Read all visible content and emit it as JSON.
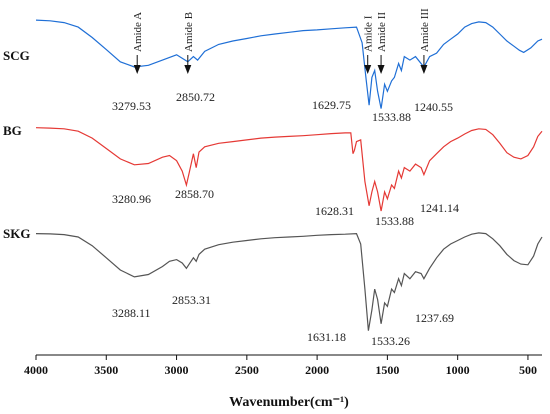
{
  "chart_data": {
    "type": "line",
    "title": "",
    "xlabel": "Wavenumber(cm⁻¹)",
    "ylabel": "",
    "xlim": [
      4000,
      400
    ],
    "x_reversed": true,
    "x_ticks": [
      4000,
      3500,
      3000,
      2500,
      2000,
      1500,
      1000,
      500
    ],
    "grid": false,
    "legend": "none",
    "band_markers": [
      {
        "label": "Amide A",
        "x": 3280
      },
      {
        "label": "Amide B",
        "x": 2920
      },
      {
        "label": "Amide I",
        "x": 1640
      },
      {
        "label": "Amide II",
        "x": 1545
      },
      {
        "label": "Amide III",
        "x": 1240
      }
    ],
    "series": [
      {
        "name": "SCG",
        "color": "#1f6fd6",
        "peak_labels": [
          "3279.53",
          "2850.72",
          "1629.75",
          "1533.88",
          "1240.55"
        ],
        "points": [
          [
            4000,
            0.965
          ],
          [
            3900,
            0.963
          ],
          [
            3800,
            0.958
          ],
          [
            3700,
            0.945
          ],
          [
            3600,
            0.915
          ],
          [
            3500,
            0.88
          ],
          [
            3400,
            0.845
          ],
          [
            3300,
            0.83
          ],
          [
            3200,
            0.835
          ],
          [
            3100,
            0.85
          ],
          [
            3000,
            0.865
          ],
          [
            2960,
            0.855
          ],
          [
            2920,
            0.845
          ],
          [
            2880,
            0.86
          ],
          [
            2850,
            0.85
          ],
          [
            2800,
            0.875
          ],
          [
            2700,
            0.895
          ],
          [
            2600,
            0.905
          ],
          [
            2500,
            0.912
          ],
          [
            2400,
            0.92
          ],
          [
            2300,
            0.925
          ],
          [
            2200,
            0.93
          ],
          [
            2100,
            0.935
          ],
          [
            2000,
            0.937
          ],
          [
            1900,
            0.94
          ],
          [
            1800,
            0.943
          ],
          [
            1720,
            0.945
          ],
          [
            1680,
            0.9
          ],
          [
            1650,
            0.79
          ],
          [
            1630,
            0.72
          ],
          [
            1610,
            0.8
          ],
          [
            1590,
            0.82
          ],
          [
            1570,
            0.76
          ],
          [
            1545,
            0.71
          ],
          [
            1520,
            0.78
          ],
          [
            1500,
            0.76
          ],
          [
            1470,
            0.79
          ],
          [
            1450,
            0.8
          ],
          [
            1420,
            0.84
          ],
          [
            1400,
            0.82
          ],
          [
            1380,
            0.86
          ],
          [
            1340,
            0.85
          ],
          [
            1300,
            0.86
          ],
          [
            1240,
            0.83
          ],
          [
            1200,
            0.86
          ],
          [
            1150,
            0.87
          ],
          [
            1100,
            0.895
          ],
          [
            1050,
            0.91
          ],
          [
            1000,
            0.925
          ],
          [
            950,
            0.945
          ],
          [
            900,
            0.955
          ],
          [
            850,
            0.96
          ],
          [
            800,
            0.958
          ],
          [
            750,
            0.945
          ],
          [
            700,
            0.925
          ],
          [
            650,
            0.905
          ],
          [
            600,
            0.89
          ],
          [
            560,
            0.878
          ],
          [
            530,
            0.872
          ],
          [
            480,
            0.885
          ],
          [
            430,
            0.905
          ],
          [
            400,
            0.91
          ]
        ]
      },
      {
        "name": "BG",
        "color": "#e53935",
        "peak_labels": [
          "3280.96",
          "2858.70",
          "1628.31",
          "1533.88",
          "1241.14"
        ],
        "points": [
          [
            4000,
            0.655
          ],
          [
            3900,
            0.654
          ],
          [
            3800,
            0.652
          ],
          [
            3700,
            0.645
          ],
          [
            3600,
            0.625
          ],
          [
            3500,
            0.595
          ],
          [
            3400,
            0.565
          ],
          [
            3300,
            0.548
          ],
          [
            3200,
            0.552
          ],
          [
            3100,
            0.57
          ],
          [
            3050,
            0.575
          ],
          [
            3000,
            0.56
          ],
          [
            2960,
            0.53
          ],
          [
            2930,
            0.49
          ],
          [
            2910,
            0.525
          ],
          [
            2880,
            0.58
          ],
          [
            2860,
            0.54
          ],
          [
            2840,
            0.585
          ],
          [
            2800,
            0.6
          ],
          [
            2700,
            0.61
          ],
          [
            2600,
            0.615
          ],
          [
            2500,
            0.62
          ],
          [
            2400,
            0.625
          ],
          [
            2300,
            0.628
          ],
          [
            2200,
            0.63
          ],
          [
            2100,
            0.632
          ],
          [
            2000,
            0.635
          ],
          [
            1900,
            0.638
          ],
          [
            1800,
            0.64
          ],
          [
            1760,
            0.64
          ],
          [
            1745,
            0.58
          ],
          [
            1735,
            0.59
          ],
          [
            1720,
            0.615
          ],
          [
            1690,
            0.62
          ],
          [
            1660,
            0.5
          ],
          [
            1630,
            0.43
          ],
          [
            1610,
            0.47
          ],
          [
            1590,
            0.5
          ],
          [
            1570,
            0.47
          ],
          [
            1545,
            0.415
          ],
          [
            1520,
            0.47
          ],
          [
            1500,
            0.45
          ],
          [
            1470,
            0.49
          ],
          [
            1450,
            0.48
          ],
          [
            1420,
            0.53
          ],
          [
            1400,
            0.51
          ],
          [
            1380,
            0.54
          ],
          [
            1340,
            0.53
          ],
          [
            1300,
            0.55
          ],
          [
            1260,
            0.54
          ],
          [
            1240,
            0.52
          ],
          [
            1200,
            0.56
          ],
          [
            1150,
            0.58
          ],
          [
            1100,
            0.6
          ],
          [
            1050,
            0.615
          ],
          [
            1000,
            0.625
          ],
          [
            950,
            0.637
          ],
          [
            900,
            0.647
          ],
          [
            850,
            0.652
          ],
          [
            800,
            0.65
          ],
          [
            750,
            0.635
          ],
          [
            700,
            0.61
          ],
          [
            650,
            0.583
          ],
          [
            600,
            0.57
          ],
          [
            550,
            0.565
          ],
          [
            500,
            0.575
          ],
          [
            460,
            0.6
          ],
          [
            430,
            0.63
          ],
          [
            400,
            0.645
          ]
        ]
      },
      {
        "name": "SKG",
        "color": "#555555",
        "peak_labels": [
          "3288.11",
          "2853.31",
          "1631.18",
          "1533.26",
          "1237.69"
        ],
        "points": [
          [
            4000,
            0.35
          ],
          [
            3900,
            0.349
          ],
          [
            3800,
            0.347
          ],
          [
            3700,
            0.34
          ],
          [
            3600,
            0.315
          ],
          [
            3500,
            0.28
          ],
          [
            3400,
            0.245
          ],
          [
            3300,
            0.225
          ],
          [
            3200,
            0.232
          ],
          [
            3100,
            0.255
          ],
          [
            3050,
            0.27
          ],
          [
            3000,
            0.275
          ],
          [
            2960,
            0.265
          ],
          [
            2930,
            0.25
          ],
          [
            2910,
            0.262
          ],
          [
            2880,
            0.28
          ],
          [
            2860,
            0.27
          ],
          [
            2840,
            0.29
          ],
          [
            2800,
            0.305
          ],
          [
            2700,
            0.318
          ],
          [
            2600,
            0.325
          ],
          [
            2500,
            0.33
          ],
          [
            2400,
            0.335
          ],
          [
            2300,
            0.338
          ],
          [
            2200,
            0.34
          ],
          [
            2100,
            0.342
          ],
          [
            2000,
            0.345
          ],
          [
            1900,
            0.347
          ],
          [
            1800,
            0.348
          ],
          [
            1720,
            0.35
          ],
          [
            1690,
            0.32
          ],
          [
            1660,
            0.19
          ],
          [
            1635,
            0.07
          ],
          [
            1610,
            0.13
          ],
          [
            1590,
            0.19
          ],
          [
            1570,
            0.16
          ],
          [
            1545,
            0.09
          ],
          [
            1520,
            0.15
          ],
          [
            1500,
            0.14
          ],
          [
            1470,
            0.19
          ],
          [
            1450,
            0.18
          ],
          [
            1420,
            0.22
          ],
          [
            1400,
            0.2
          ],
          [
            1380,
            0.235
          ],
          [
            1340,
            0.22
          ],
          [
            1300,
            0.24
          ],
          [
            1260,
            0.235
          ],
          [
            1240,
            0.22
          ],
          [
            1200,
            0.25
          ],
          [
            1150,
            0.28
          ],
          [
            1100,
            0.305
          ],
          [
            1050,
            0.32
          ],
          [
            1000,
            0.33
          ],
          [
            950,
            0.34
          ],
          [
            900,
            0.348
          ],
          [
            850,
            0.352
          ],
          [
            800,
            0.35
          ],
          [
            750,
            0.335
          ],
          [
            700,
            0.315
          ],
          [
            650,
            0.29
          ],
          [
            600,
            0.272
          ],
          [
            550,
            0.262
          ],
          [
            500,
            0.26
          ],
          [
            460,
            0.285
          ],
          [
            430,
            0.32
          ],
          [
            400,
            0.34
          ]
        ]
      }
    ]
  }
}
